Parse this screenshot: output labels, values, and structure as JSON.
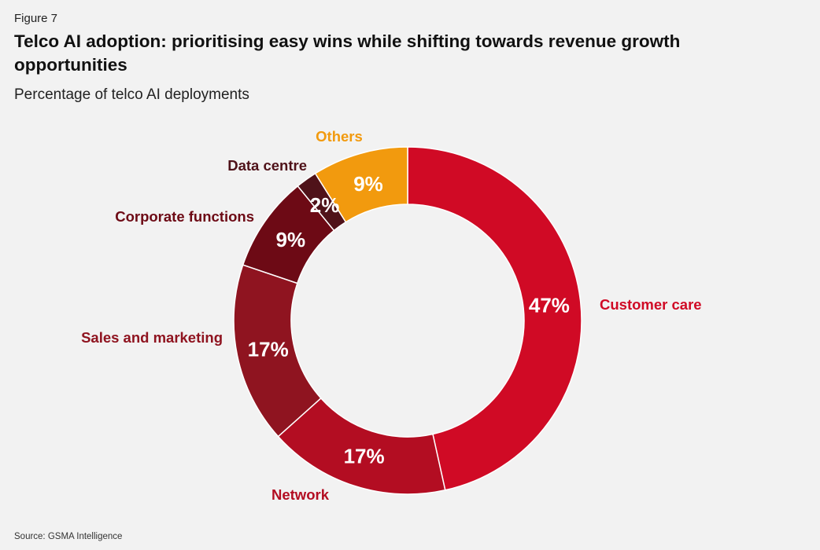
{
  "header": {
    "figure": "Figure 7",
    "title": "Telco AI adoption: prioritising easy wins while shifting towards revenue growth opportunities",
    "subtitle": "Percentage of telco AI deployments"
  },
  "footer": {
    "source": "Source: GSMA Intelligence"
  },
  "colors": {
    "customer_care": "#d00a25",
    "network": "#b30d22",
    "sales_marketing": "#8f1420",
    "corporate_functions": "#6d0a15",
    "data_centre": "#4f1219",
    "others": "#f29a0e",
    "slice_text": "#ffffff",
    "background": "#f2f2f2"
  },
  "chart_data": {
    "type": "pie",
    "variant": "donut",
    "title": "Telco AI adoption: prioritising easy wins while shifting towards revenue growth opportunities",
    "subtitle": "Percentage of telco AI deployments",
    "unit": "%",
    "slices": [
      {
        "name": "Customer care",
        "value": 47,
        "label": "47%",
        "color": "#d00a25"
      },
      {
        "name": "Network",
        "value": 17,
        "label": "17%",
        "color": "#b30d22"
      },
      {
        "name": "Sales and marketing",
        "value": 17,
        "label": "17%",
        "color": "#8f1420"
      },
      {
        "name": "Corporate functions",
        "value": 9,
        "label": "9%",
        "color": "#6d0a15"
      },
      {
        "name": "Data centre",
        "value": 2,
        "label": "2%",
        "color": "#4f1219"
      },
      {
        "name": "Others",
        "value": 9,
        "label": "9%",
        "color": "#f29a0e"
      }
    ]
  }
}
